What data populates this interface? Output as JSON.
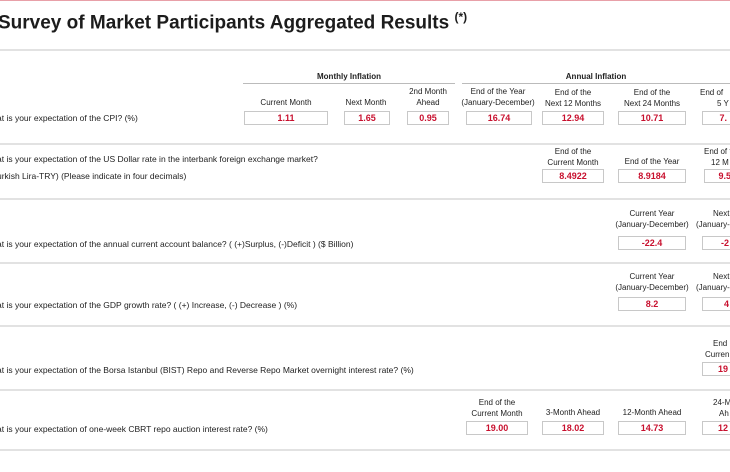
{
  "title": "Survey of Market Participants Aggregated Results",
  "title_mark": "(*)",
  "cpi": {
    "group_monthly": "Monthly Inflation",
    "group_annual": "Annual Inflation",
    "question": "at is your expectation of the CPI? (%)",
    "columns": [
      {
        "label1": "",
        "label2": "Current Month",
        "value": "1.11"
      },
      {
        "label1": "",
        "label2": "Next Month",
        "value": "1.65"
      },
      {
        "label1": "2nd Month",
        "label2": "Ahead",
        "value": "0.95"
      },
      {
        "label1": "End of the Year",
        "label2": "(January-December)",
        "value": "16.74"
      },
      {
        "label1": "End of the",
        "label2": "Next 12 Months",
        "value": "12.94"
      },
      {
        "label1": "End of the",
        "label2": "Next 24 Months",
        "value": "10.71"
      },
      {
        "label1": "End of",
        "label2": "5 Y",
        "value": "7."
      }
    ]
  },
  "usd": {
    "question1": "at is your expectation of the US Dollar rate in the interbank foreign exchange market?",
    "question2": "urkish Lira-TRY) (Please indicate in four decimals)",
    "columns": [
      {
        "label1": "End of the",
        "label2": "Current Month",
        "value": "8.4922"
      },
      {
        "label1": "",
        "label2": "End of the Year",
        "value": "8.9184"
      },
      {
        "label1": "End of t",
        "label2": "12 M",
        "value": "9.5"
      }
    ]
  },
  "account": {
    "question": "at is your expectation of the annual current account balance? ( (+)Surplus, (-)Deficit ) ($ Billion)",
    "columns": [
      {
        "label1": "Current Year",
        "label2": "(January-December)",
        "value": "-22.4"
      },
      {
        "label1": "Next",
        "label2": "(January-",
        "value": "-2"
      }
    ]
  },
  "gdp": {
    "question": "at is your expectation of the GDP growth rate? ( (+) Increase,  (-) Decrease ) (%)",
    "columns": [
      {
        "label1": "Current Year",
        "label2": "(January-December)",
        "value": "8.2"
      },
      {
        "label1": "Next",
        "label2": "(January-",
        "value": "4"
      }
    ]
  },
  "bist": {
    "question": "at is your expectation of the Borsa Istanbul (BIST) Repo and Reverse Repo Market overnight interest rate? (%)",
    "columns": [
      {
        "label1": "End",
        "label2": "Curren",
        "value": "19"
      }
    ]
  },
  "repo": {
    "question": "at is your expectation of one-week CBRT repo auction interest rate? (%)",
    "columns": [
      {
        "label1": "End of the",
        "label2": "Current Month",
        "value": "19.00"
      },
      {
        "label1": "",
        "label2": "3-Month Ahead",
        "value": "18.02"
      },
      {
        "label1": "",
        "label2": "12-Month Ahead",
        "value": "14.73"
      },
      {
        "label1": "24-M",
        "label2": "Ah",
        "value": "12"
      }
    ]
  }
}
